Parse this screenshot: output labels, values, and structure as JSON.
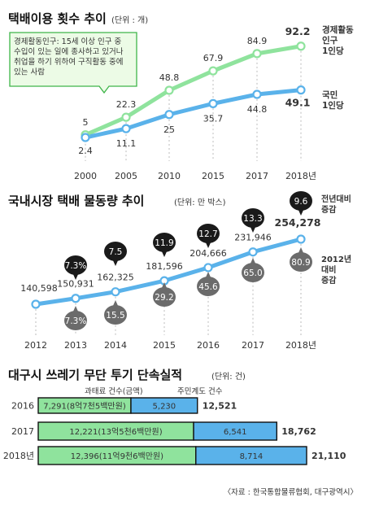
{
  "chart_data": [
    {
      "type": "line",
      "title": "택배이용 횟수 추이",
      "unit": "(단위 : 개)",
      "categories": [
        "2000",
        "2005",
        "2010",
        "2015",
        "2017",
        "2018년"
      ],
      "series": [
        {
          "name": "경제활동인구 1인당",
          "values": [
            5,
            22.3,
            48.8,
            67.9,
            84.9,
            92.2
          ],
          "labels": [
            "5",
            "22.3",
            "48.8",
            "67.9",
            "84.9",
            "92.2"
          ],
          "color": "#8fe39d"
        },
        {
          "name": "국민 1인당",
          "values": [
            2.4,
            11.1,
            25,
            35.7,
            44.8,
            49.1
          ],
          "labels": [
            "2.4",
            "11.1",
            "25",
            "35.7",
            "44.8",
            "49.1"
          ],
          "color": "#5ab2ea"
        }
      ],
      "legend": [
        "경제활동\n인구\n1인당",
        "국민\n1인당"
      ],
      "note": "경제활동인구: 15세 이상 인구 중\n수입이 있는 일에 종사하고 있거나\n취업을 하기 위하여 구직활동 중에\n있는 사람",
      "ylim": [
        0,
        100
      ]
    },
    {
      "type": "line",
      "title": "국내시장 택배 물동량 추이",
      "unit": "(단위: 만 박스)",
      "categories": [
        "2012",
        "2013",
        "2014",
        "2015",
        "2016",
        "2017",
        "2018년"
      ],
      "series": [
        {
          "name": "물동량",
          "values": [
            140598,
            150931,
            162325,
            181596,
            204666,
            231946,
            254278
          ],
          "labels": [
            "140,598",
            "150,931",
            "162,325",
            "181,596",
            "204,666",
            "231,946",
            "254,278"
          ],
          "color": "#5ab2ea"
        }
      ],
      "yoy_label": "전년대비\n증감",
      "yoy_change": [
        null,
        7.3,
        7.5,
        11.9,
        12.7,
        13.3,
        9.6
      ],
      "yoy_labels": [
        "",
        "7.3%",
        "7.5",
        "11.9",
        "12.7",
        "13.3",
        "9.6"
      ],
      "base_label": "2012년\n대비\n증감",
      "vs_2012_change": [
        null,
        7.3,
        15.5,
        29.2,
        45.6,
        65.0,
        80.9
      ],
      "vs_2012_labels": [
        "",
        "7.3%",
        "15.5",
        "29.2",
        "45.6",
        "65.0",
        "80.9"
      ],
      "ylim": [
        120000,
        265000
      ]
    },
    {
      "type": "bar",
      "stacked": true,
      "orientation": "horizontal",
      "title": "대구시 쓰레기 무단 투기 단속실적",
      "unit": "(단위: 건)",
      "categories": [
        "2016",
        "2017",
        "2018년"
      ],
      "series": [
        {
          "name": "과태료 건수(금액)",
          "values": [
            7291,
            12221,
            12396
          ],
          "labels": [
            "7,291(8억7천5백만원)",
            "12,221(13억5천6백만원)",
            "12,396(11억9천6백만원)"
          ],
          "color": "#8fe39d"
        },
        {
          "name": "주민계도 건수",
          "values": [
            5230,
            6541,
            8714
          ],
          "labels": [
            "5,230",
            "6,541",
            "8,714"
          ],
          "color": "#5ab2ea"
        }
      ],
      "totals": [
        "12,521",
        "18,762",
        "21,110"
      ],
      "total_values": [
        12521,
        18762,
        21110
      ]
    }
  ],
  "source": "〈자료 : 한국통합물류협회, 대구광역시〉",
  "colors": {
    "green": "#8fe39d",
    "blue": "#5ab2ea",
    "bubble_black": "#1a1a1a",
    "bubble_gray": "#6b6b6b",
    "note_bg": "#ecfbe6",
    "note_border": "#3fb54a"
  }
}
